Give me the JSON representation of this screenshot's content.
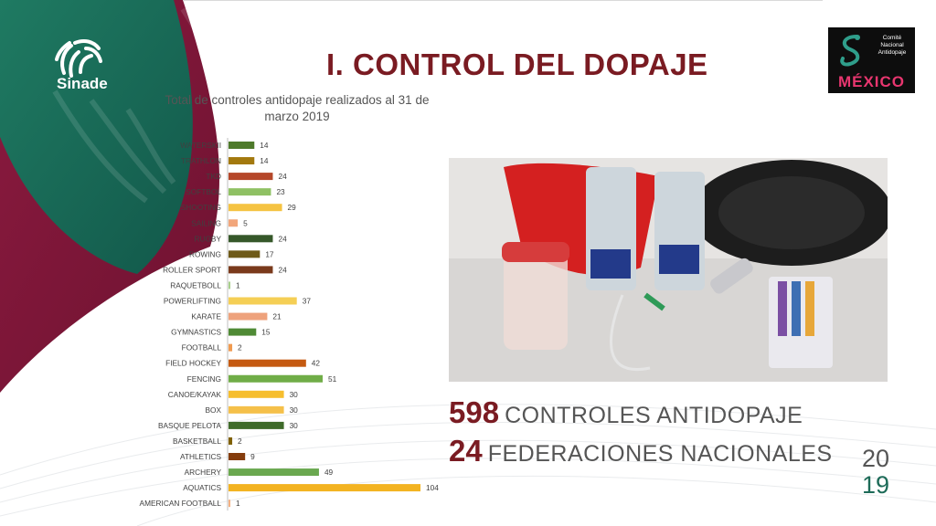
{
  "header": {
    "title": "I.    CONTROL DEL DOPAJE",
    "left_logo_text": "Sinade",
    "right_logo_text": "Comité Nacional Antidopaje",
    "right_logo_country": "MÉXICO"
  },
  "chart_data": {
    "type": "bar",
    "orientation": "horizontal",
    "title": "Total de controles antidopaje realizados al 31 de marzo 2019",
    "categories": [
      "WATERSKII",
      "TRATHLON",
      "TKD",
      "SOFTBOL",
      "SHOOTING",
      "SAILING",
      "RUGBY",
      "ROWING",
      "ROLLER SPORT",
      "RAQUETBOLL",
      "POWERLIFTING",
      "KARATE",
      "GYMNASTICS",
      "FOOTBALL",
      "FIELD HOCKEY",
      "FENCING",
      "CANOE/KAYAK",
      "BOX",
      "BASQUE PELOTA",
      "BASKETBALL",
      "ATHLETICS",
      "ARCHERY",
      "AQUATICS",
      "AMERICAN FOOTBALL"
    ],
    "values": [
      14,
      14,
      24,
      23,
      29,
      5,
      24,
      17,
      24,
      1,
      37,
      21,
      15,
      2,
      42,
      51,
      30,
      30,
      30,
      2,
      9,
      49,
      104,
      1
    ],
    "colors": [
      "#4e7a2b",
      "#a3790e",
      "#b5472a",
      "#8fc164",
      "#f5c342",
      "#f2a67b",
      "#36582a",
      "#6f5a18",
      "#7a3a1c",
      "#a8d08d",
      "#f5cf55",
      "#eea27c",
      "#4f8a35",
      "#f09a50",
      "#c55a11",
      "#70ad47",
      "#f6be2e",
      "#f5c04a",
      "#3f6b2a",
      "#7f6000",
      "#843c0c",
      "#6aa84f",
      "#f3b321",
      "#f4b183"
    ],
    "grid": false,
    "data_labels": true,
    "legend": "none"
  },
  "stats": [
    {
      "number": "598",
      "label": "CONTROLES ANTIDOPAJE"
    },
    {
      "number": "24",
      "label": "FEDERACIONES NACIONALES"
    }
  ],
  "year": {
    "top": "20",
    "bottom": "19"
  },
  "theme": {
    "maroon": "#7a1b22",
    "green": "#1d6b58",
    "text_gray": "#555555"
  }
}
